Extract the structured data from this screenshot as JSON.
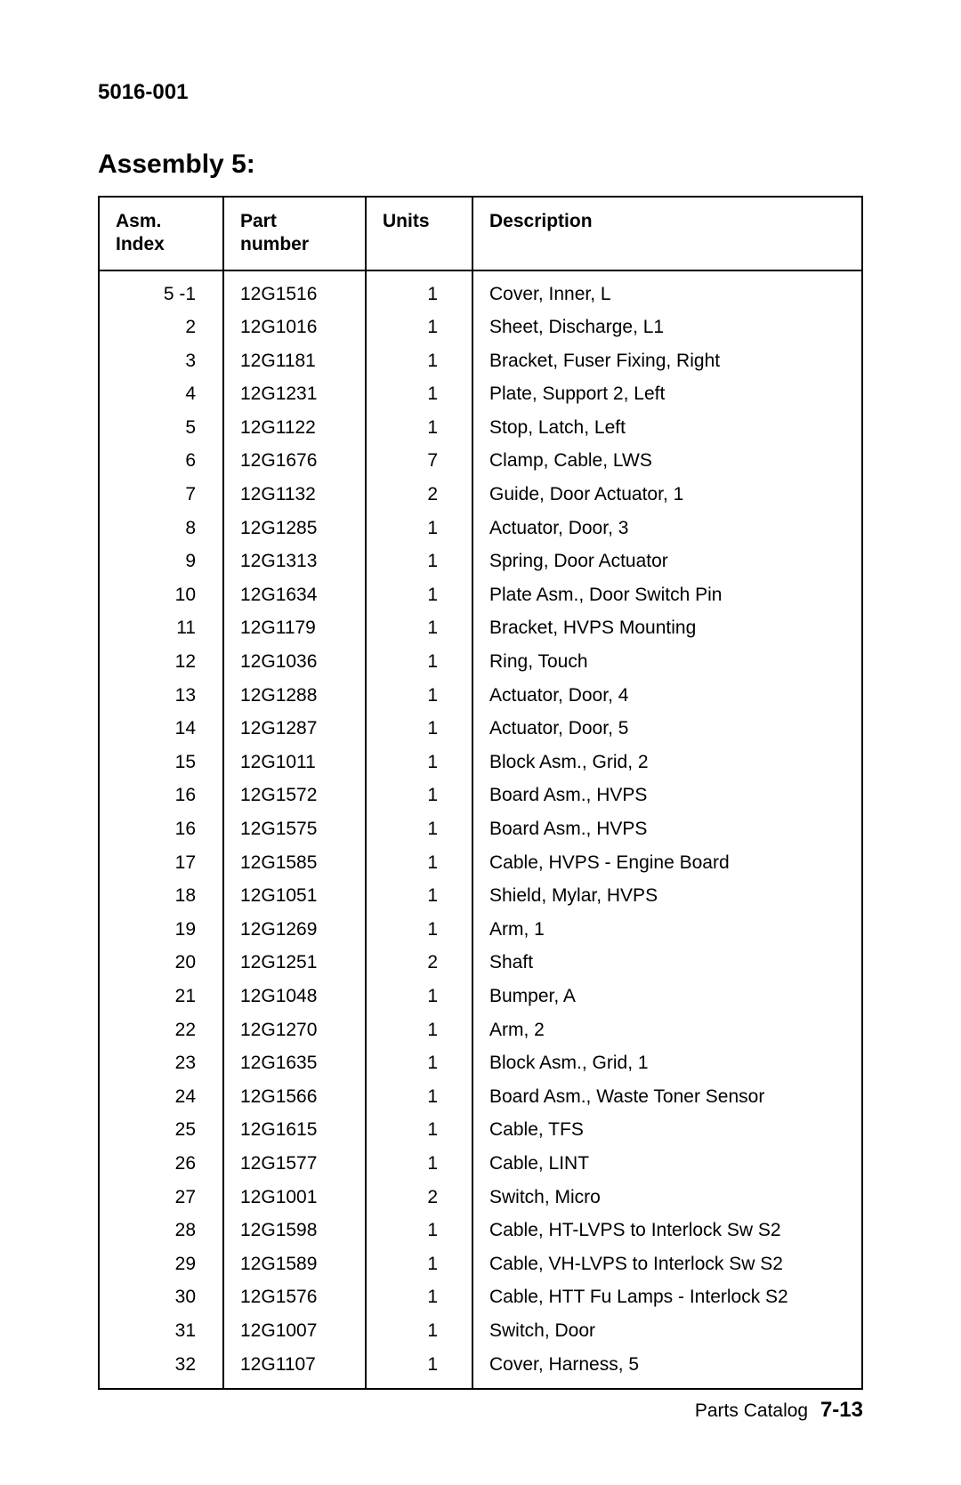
{
  "doc_code": "5016-001",
  "assembly_title": "Assembly 5:",
  "table": {
    "columns": {
      "idx_label": "Asm.\nIndex",
      "part_label": "Part\nnumber",
      "units_label": "Units",
      "desc_label": "Description"
    },
    "rows": [
      {
        "idx": "5 -1",
        "part": "12G1516",
        "units": "1",
        "desc": "Cover, Inner, L"
      },
      {
        "idx": "2",
        "part": "12G1016",
        "units": "1",
        "desc": "Sheet, Discharge, L1"
      },
      {
        "idx": "3",
        "part": "12G1181",
        "units": "1",
        "desc": "Bracket, Fuser Fixing, Right"
      },
      {
        "idx": "4",
        "part": "12G1231",
        "units": "1",
        "desc": "Plate, Support 2, Left"
      },
      {
        "idx": "5",
        "part": "12G1122",
        "units": "1",
        "desc": "Stop, Latch, Left"
      },
      {
        "idx": "6",
        "part": "12G1676",
        "units": "7",
        "desc": "Clamp, Cable, LWS"
      },
      {
        "idx": "7",
        "part": "12G1132",
        "units": "2",
        "desc": "Guide, Door Actuator, 1"
      },
      {
        "idx": "8",
        "part": "12G1285",
        "units": "1",
        "desc": "Actuator, Door, 3"
      },
      {
        "idx": "9",
        "part": "12G1313",
        "units": "1",
        "desc": "Spring, Door Actuator"
      },
      {
        "idx": "10",
        "part": "12G1634",
        "units": "1",
        "desc": "Plate Asm., Door Switch Pin"
      },
      {
        "idx": "11",
        "part": "12G1179",
        "units": "1",
        "desc": "Bracket, HVPS Mounting"
      },
      {
        "idx": "12",
        "part": "12G1036",
        "units": "1",
        "desc": "Ring, Touch"
      },
      {
        "idx": "13",
        "part": "12G1288",
        "units": "1",
        "desc": "Actuator, Door, 4"
      },
      {
        "idx": "14",
        "part": "12G1287",
        "units": "1",
        "desc": "Actuator, Door, 5"
      },
      {
        "idx": "15",
        "part": "12G1011",
        "units": "1",
        "desc": "Block Asm., Grid, 2"
      },
      {
        "idx": "16",
        "part": "12G1572",
        "units": "1",
        "desc": "Board Asm., HVPS"
      },
      {
        "idx": "16",
        "part": "12G1575",
        "units": "1",
        "desc": "Board Asm., HVPS"
      },
      {
        "idx": "17",
        "part": "12G1585",
        "units": "1",
        "desc": "Cable, HVPS - Engine Board"
      },
      {
        "idx": "18",
        "part": "12G1051",
        "units": "1",
        "desc": "Shield, Mylar, HVPS"
      },
      {
        "idx": "19",
        "part": "12G1269",
        "units": "1",
        "desc": "Arm, 1"
      },
      {
        "idx": "20",
        "part": "12G1251",
        "units": "2",
        "desc": "Shaft"
      },
      {
        "idx": "21",
        "part": "12G1048",
        "units": "1",
        "desc": "Bumper, A"
      },
      {
        "idx": "22",
        "part": "12G1270",
        "units": "1",
        "desc": "Arm, 2"
      },
      {
        "idx": "23",
        "part": "12G1635",
        "units": "1",
        "desc": "Block Asm., Grid, 1"
      },
      {
        "idx": "24",
        "part": "12G1566",
        "units": "1",
        "desc": "Board Asm., Waste Toner Sensor"
      },
      {
        "idx": "25",
        "part": "12G1615",
        "units": "1",
        "desc": "Cable, TFS"
      },
      {
        "idx": "26",
        "part": "12G1577",
        "units": "1",
        "desc": "Cable, LINT"
      },
      {
        "idx": "27",
        "part": "12G1001",
        "units": "2",
        "desc": "Switch, Micro"
      },
      {
        "idx": "28",
        "part": "12G1598",
        "units": "1",
        "desc": "Cable, HT-LVPS to Interlock Sw S2"
      },
      {
        "idx": "29",
        "part": "12G1589",
        "units": "1",
        "desc": "Cable, VH-LVPS to Interlock Sw S2"
      },
      {
        "idx": "30",
        "part": "12G1576",
        "units": "1",
        "desc": "Cable, HTT Fu Lamps - Interlock S2"
      },
      {
        "idx": "31",
        "part": "12G1007",
        "units": "1",
        "desc": "Switch, Door"
      },
      {
        "idx": "32",
        "part": "12G1107",
        "units": "1",
        "desc": "Cover, Harness, 5"
      }
    ]
  },
  "footer": {
    "label": "Parts Catalog",
    "page": "7-13"
  }
}
